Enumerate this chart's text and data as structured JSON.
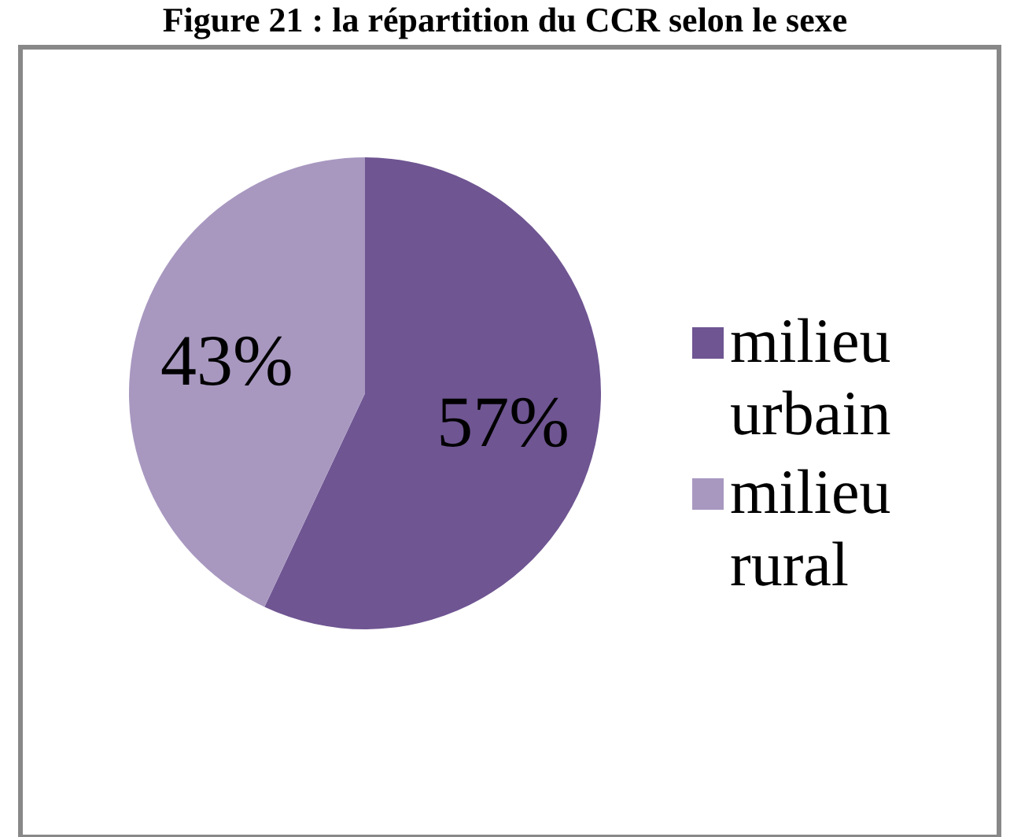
{
  "chart_data": {
    "type": "pie",
    "title": "Figure 21 : la répartition du CCR selon le sexe",
    "categories": [
      "milieu urbain",
      "milieu rural"
    ],
    "values": [
      57,
      43
    ],
    "value_labels": [
      "57%",
      "43%"
    ],
    "colors": [
      "#6f5592",
      "#a898c0"
    ],
    "legend": "right"
  }
}
